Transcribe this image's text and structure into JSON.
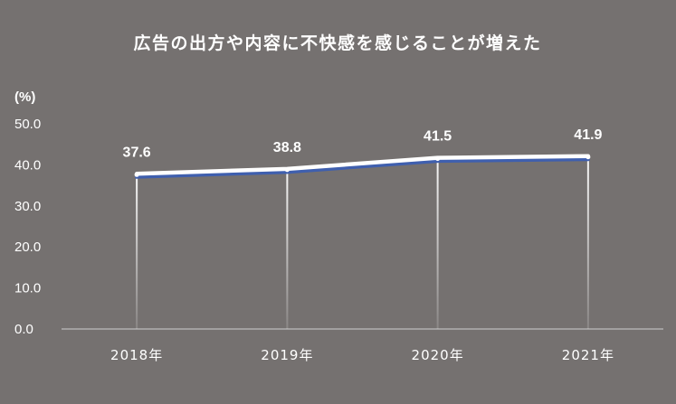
{
  "chart_data": {
    "type": "line",
    "title": "広告の出方や内容に不快感を感じることが増えた",
    "unit_label": "(%)",
    "xlabel": "",
    "ylabel": "",
    "categories": [
      "2018年",
      "2019年",
      "2020年",
      "2021年"
    ],
    "series": [
      {
        "values": [
          37.6,
          38.8,
          41.5,
          41.9
        ]
      }
    ],
    "data_labels": [
      "37.6",
      "38.8",
      "41.5",
      "41.9"
    ],
    "ylim": [
      0,
      50
    ],
    "yticks": [
      "0.0",
      "10.0",
      "20.0",
      "30.0",
      "40.0",
      "50.0"
    ],
    "grid": false,
    "drop_lines": true,
    "legend": "none",
    "colors": {
      "background": "#757170",
      "line_outer": "#ffffff",
      "line_inner": "#3f5fae",
      "text": "#ffffff"
    }
  }
}
